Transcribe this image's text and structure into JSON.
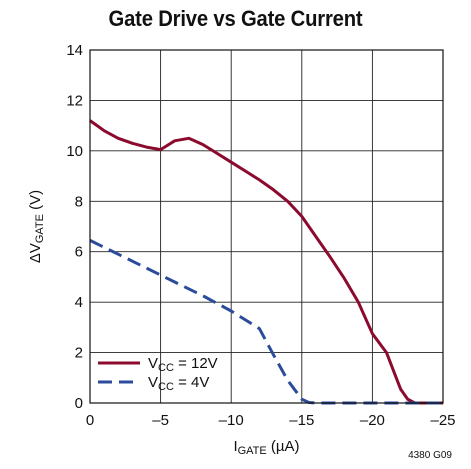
{
  "chart_data": {
    "type": "line",
    "title": "Gate Drive vs Gate Current",
    "xlabel_main": "I",
    "xlabel_sub": "GATE",
    "xlabel_unit": " (µA)",
    "ylabel_prefix": "ΔV",
    "ylabel_sub": "GATE",
    "ylabel_unit": " (V)",
    "xlim": [
      0,
      -25
    ],
    "ylim": [
      0,
      14
    ],
    "x_ticks": [
      0,
      -5,
      -10,
      -15,
      -20,
      -25
    ],
    "x_tick_labels": [
      "0",
      "–5",
      "–10",
      "–15",
      "–20",
      "–25"
    ],
    "y_ticks": [
      0,
      2,
      4,
      6,
      8,
      10,
      12,
      14
    ],
    "y_tick_labels": [
      "0",
      "2",
      "4",
      "6",
      "8",
      "10",
      "12",
      "14"
    ],
    "grid": true,
    "legend_position": "bottom-left",
    "note": "4380 G09",
    "series": [
      {
        "name_prefix": "V",
        "name_sub": "CC",
        "name_suffix": " = 12V",
        "color": "#8b0a2e",
        "dash": "solid",
        "x": [
          0,
          -0.5,
          -1,
          -2,
          -3,
          -4,
          -5,
          -6,
          -7,
          -8,
          -9,
          -10,
          -11,
          -12,
          -13,
          -14,
          -15,
          -16,
          -17,
          -18,
          -19,
          -20,
          -21,
          -22,
          -22.5,
          -23,
          -25
        ],
        "y": [
          11.2,
          11.0,
          10.8,
          10.5,
          10.3,
          10.15,
          10.05,
          10.4,
          10.5,
          10.25,
          9.9,
          9.55,
          9.2,
          8.85,
          8.45,
          8.0,
          7.4,
          6.6,
          5.8,
          4.95,
          4.0,
          2.75,
          2.0,
          0.55,
          0.15,
          0,
          0
        ]
      },
      {
        "name_prefix": "V",
        "name_sub": "CC",
        "name_suffix": " = 4V",
        "color": "#2b4b9b",
        "dash": "dashed",
        "x": [
          0,
          -2,
          -4,
          -6,
          -8,
          -10,
          -12,
          -13,
          -14,
          -15,
          -15.5,
          -16,
          -25
        ],
        "y": [
          6.45,
          5.9,
          5.35,
          4.8,
          4.25,
          3.65,
          2.95,
          1.9,
          0.9,
          0.15,
          0.02,
          0,
          0
        ]
      }
    ]
  }
}
